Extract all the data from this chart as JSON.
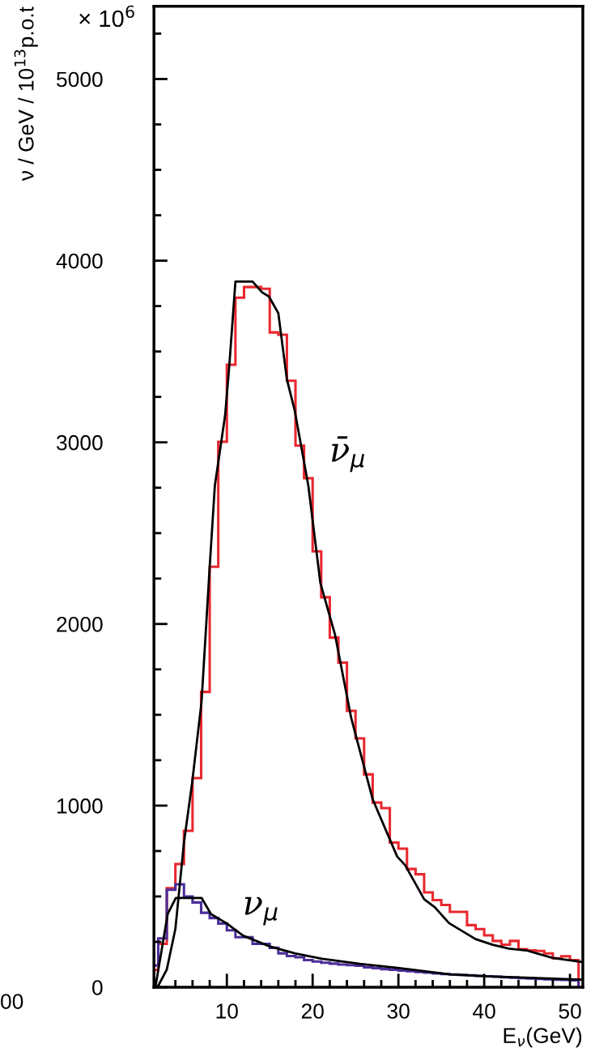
{
  "chart_data": {
    "type": "histogram",
    "xlabel": "E$_{ν}$(GeV)",
    "ylabel": "ν / GeV / 10$^{13}$p.o.t",
    "annotations": [
      "× 10$^{6}$",
      "00",
      "ν̄$_{μ}$",
      "ν$_{μ}$"
    ],
    "bins": [
      1.5,
      2,
      3,
      4,
      5,
      6,
      7,
      8,
      9,
      10,
      11,
      12,
      13,
      14,
      15,
      16,
      17,
      18,
      19,
      20,
      21,
      22,
      23,
      24,
      25,
      26,
      27,
      28,
      29,
      30,
      31,
      32,
      33,
      34,
      35,
      36,
      37,
      38,
      39,
      40,
      41,
      42,
      43,
      44,
      45,
      46,
      47,
      48,
      49,
      50,
      51
    ],
    "series": [
      {
        "color": "#e8282f",
        "values": [
          95,
          239,
          545,
          678,
          861,
          1151,
          1626,
          2315,
          3003,
          3427,
          3796,
          3855,
          3855,
          3845,
          3605,
          3592,
          3339,
          2982,
          2802,
          2400,
          2147,
          1925,
          1787,
          1522,
          1370,
          1172,
          1017,
          986,
          797,
          763,
          651,
          622,
          522,
          480,
          453,
          415,
          415,
          342,
          320,
          286,
          255,
          234,
          255,
          210,
          203,
          200,
          186,
          160,
          171,
          150
        ]
      },
      {
        "color": "#4b2e9a",
        "values": [
          120,
          269,
          537,
          567,
          500,
          467,
          410,
          381,
          351,
          314,
          276,
          276,
          239,
          239,
          217,
          187,
          172,
          165,
          150,
          142,
          135,
          130,
          125,
          122,
          118,
          110,
          105,
          100,
          96,
          92,
          88,
          84,
          80,
          76,
          73,
          70,
          68,
          66,
          63,
          60,
          58,
          55,
          53,
          50,
          48,
          46,
          44,
          42,
          40,
          38
        ]
      },
      {
        "type": "line",
        "color": "#000000",
        "x": [
          1.7,
          2.0,
          3.0,
          4.0,
          5.0,
          5.95,
          7.05,
          8.0,
          8.6,
          9.8,
          10.3,
          11.0,
          13.0,
          14.1,
          14.9,
          16.0,
          17.0,
          17.9,
          19.5,
          20.9,
          22.6,
          24.5,
          27.0,
          29.85,
          30.8,
          33.0,
          34.25,
          35.9,
          39.0,
          41.0,
          42.9,
          44.9,
          48.0,
          51.3
        ],
        "values": [
          0,
          8,
          98,
          321,
          797,
          1125,
          1571,
          2315,
          2761,
          3149,
          3431,
          3885,
          3885,
          3826,
          3803,
          3711,
          3346,
          3178,
          2761,
          2226,
          1943,
          1482,
          1035,
          720,
          671,
          485,
          440,
          353,
          265,
          234,
          213,
          203,
          161,
          140
        ]
      },
      {
        "type": "line",
        "color": "#000000",
        "x": [
          1.7,
          3.1,
          4.05,
          7.05,
          8.15,
          10.0,
          11.9,
          15.0,
          18.0,
          21.1,
          25.5,
          29.7,
          36.0,
          40.1,
          51.3
        ],
        "values": [
          8,
          403,
          492,
          492,
          403,
          351,
          284,
          225,
          186,
          157,
          129,
          108,
          71,
          61,
          42
        ]
      }
    ],
    "xlim": [
      1.5,
      51.5
    ],
    "xticks": [
      {
        "value": 4,
        "label": null
      },
      {
        "value": 6,
        "label": null
      },
      {
        "value": 8,
        "label": null
      },
      10,
      {
        "value": 12,
        "label": null
      },
      {
        "value": 14,
        "label": null
      },
      {
        "value": 16,
        "label": null
      },
      {
        "value": 18,
        "label": null
      },
      20,
      {
        "value": 22,
        "label": null
      },
      {
        "value": 24,
        "label": null
      },
      {
        "value": 26,
        "label": null
      },
      {
        "value": 28,
        "label": null
      },
      30,
      {
        "value": 32,
        "label": null
      },
      {
        "value": 34,
        "label": null
      },
      {
        "value": 36,
        "label": null
      },
      {
        "value": 38,
        "label": null
      },
      40,
      {
        "value": 42,
        "label": null
      },
      {
        "value": 44,
        "label": null
      },
      {
        "value": 46,
        "label": null
      },
      {
        "value": 48,
        "label": null
      },
      50
    ],
    "ylim": [
      0,
      5400
    ],
    "yticks": [
      0,
      1000,
      2000,
      3000,
      4000,
      5000,
      {
        "value": 250,
        "label": null
      },
      {
        "value": 500,
        "label": null
      },
      {
        "value": 750,
        "label": null
      },
      {
        "value": 1250,
        "label": null
      },
      {
        "value": 1500,
        "label": null
      },
      {
        "value": 1750,
        "label": null
      },
      {
        "value": 2250,
        "label": null
      },
      {
        "value": 2500,
        "label": null
      },
      {
        "value": 2750,
        "label": null
      },
      {
        "value": 3250,
        "label": null
      },
      {
        "value": 3500,
        "label": null
      },
      {
        "value": 3750,
        "label": null
      },
      {
        "value": 4250,
        "label": null
      },
      {
        "value": 4500,
        "label": null
      },
      {
        "value": 4750,
        "label": null
      },
      {
        "value": 5250,
        "label": null
      }
    ],
    "grid": false,
    "legend": false
  }
}
